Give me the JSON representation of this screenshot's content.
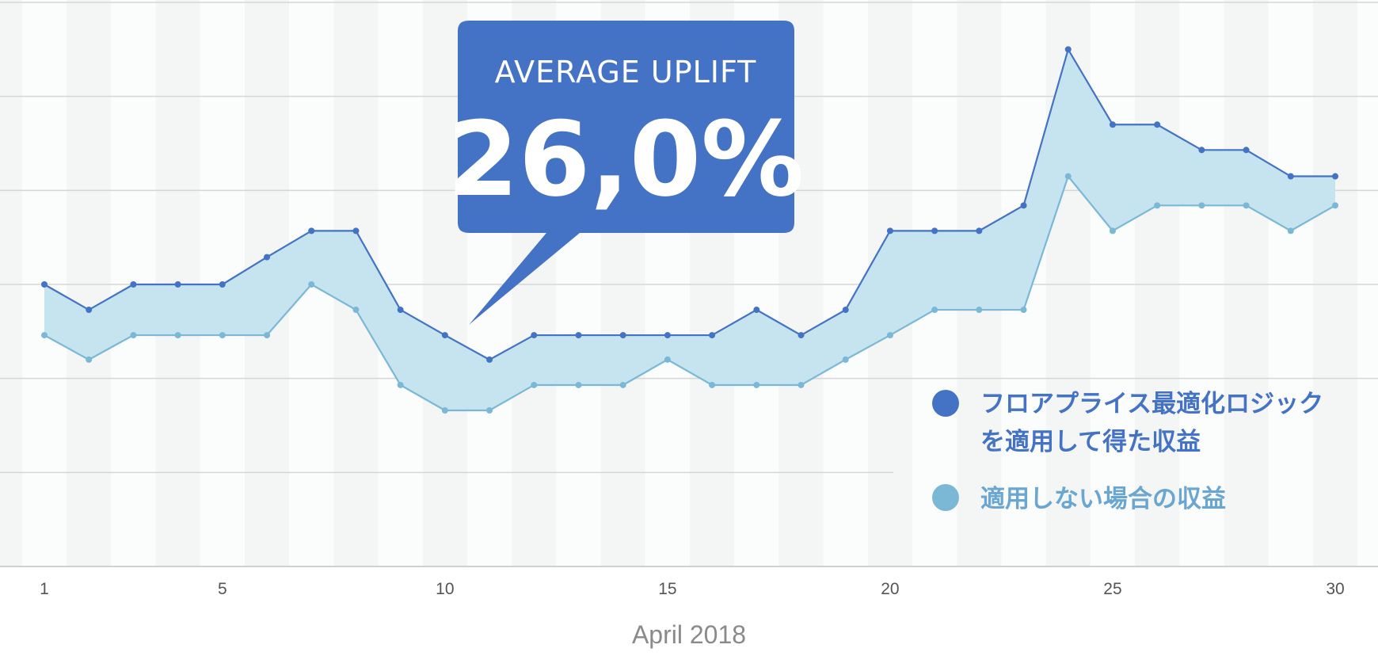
{
  "chart_data": {
    "type": "area",
    "x": [
      1,
      2,
      3,
      4,
      5,
      6,
      7,
      8,
      9,
      10,
      11,
      12,
      13,
      14,
      15,
      16,
      17,
      18,
      19,
      20,
      21,
      22,
      23,
      24,
      25,
      26,
      27,
      28,
      29,
      30
    ],
    "x_ticks": [
      1,
      5,
      10,
      15,
      20,
      25,
      30
    ],
    "xlabel": "April 2018",
    "ylim": [
      0,
      6
    ],
    "grid": "horizontal lines with alternating vertical day bands",
    "series": [
      {
        "name": "フロアプライス最適化ロジックを適用して得た収益",
        "legend_lines": [
          "フロアプライス最適化ロジック",
          "を適用して得た収益"
        ],
        "color": "#4472c4",
        "values": [
          3.0,
          2.73,
          3.0,
          3.0,
          3.0,
          3.29,
          3.57,
          3.57,
          2.73,
          2.46,
          2.2,
          2.46,
          2.46,
          2.46,
          2.46,
          2.46,
          2.73,
          2.46,
          2.73,
          3.57,
          3.57,
          3.57,
          3.84,
          5.5,
          4.7,
          4.7,
          4.43,
          4.43,
          4.15,
          4.15
        ]
      },
      {
        "name": "適用しない場合の収益",
        "legend_lines": [
          "適用しない場合の収益"
        ],
        "color": "#7ab8d6",
        "values": [
          2.46,
          2.2,
          2.46,
          2.46,
          2.46,
          2.46,
          3.0,
          2.73,
          1.93,
          1.66,
          1.66,
          1.93,
          1.93,
          1.93,
          2.2,
          1.93,
          1.93,
          1.93,
          2.2,
          2.46,
          2.73,
          2.73,
          2.73,
          4.15,
          3.57,
          3.84,
          3.84,
          3.84,
          3.57,
          3.84
        ]
      }
    ],
    "fill_between_color": "#c5e4ef",
    "legend_position": "bottom-right",
    "callout": {
      "title": "AVERAGE UPLIFT",
      "value": "26,0%",
      "color": "#4472c4"
    }
  }
}
